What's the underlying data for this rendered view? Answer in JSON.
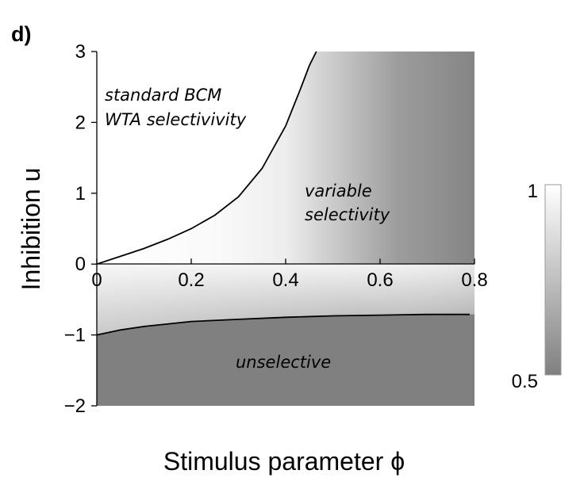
{
  "chart_data": {
    "type": "heatmap",
    "panel_label": "d)",
    "xlabel": "Stimulus parameter ϕ",
    "ylabel": "Inhibition u",
    "xlim": [
      0,
      0.8
    ],
    "ylim": [
      -2,
      3
    ],
    "x_ticks": [
      "0",
      "0.2",
      "0.4",
      "0.6",
      "0.8"
    ],
    "y_ticks": [
      "3",
      "2",
      "1",
      "0",
      "−1",
      "−2"
    ],
    "colorbar": {
      "min": 0.5,
      "max": 1,
      "ticks": [
        "1",
        "0.5"
      ],
      "min_color": "#808080",
      "max_color": "#ffffff"
    },
    "annotations": {
      "wta_line1": "standard BCM",
      "wta_line2": "WTA selectivivity",
      "variable_line1": "variable",
      "variable_line2": "selectivity",
      "unselective": "unselective"
    },
    "upper_boundary": {
      "x": [
        0,
        0.05,
        0.1,
        0.15,
        0.2,
        0.25,
        0.3,
        0.35,
        0.4,
        0.43,
        0.45,
        0.465
      ],
      "y": [
        0,
        0.11,
        0.22,
        0.35,
        0.5,
        0.69,
        0.95,
        1.35,
        1.95,
        2.45,
        2.8,
        3.0
      ]
    },
    "lower_boundary": {
      "x": [
        0,
        0.05,
        0.1,
        0.2,
        0.3,
        0.4,
        0.5,
        0.6,
        0.7,
        0.79
      ],
      "y": [
        -1.0,
        -0.93,
        -0.88,
        -0.81,
        -0.78,
        -0.75,
        -0.73,
        -0.72,
        -0.71,
        -0.71
      ]
    },
    "grid": false
  }
}
